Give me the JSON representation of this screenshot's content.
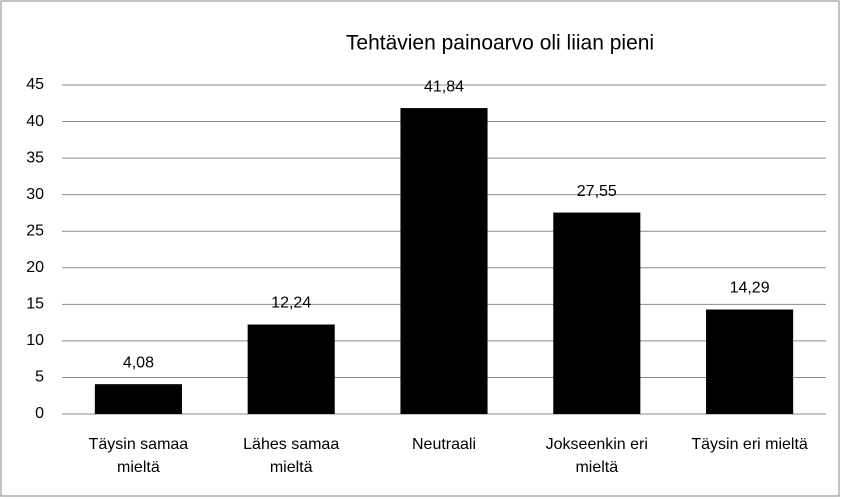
{
  "chart_data": {
    "type": "bar",
    "title": "Tehtävien painoarvo oli liian pieni",
    "categories": [
      "Täysin samaa mieltä",
      "Lähes samaa mieltä",
      "Neutraali",
      "Jokseenkin eri mieltä",
      "Täysin eri mieltä"
    ],
    "values": [
      4.08,
      12.24,
      41.84,
      27.55,
      14.29
    ],
    "value_labels": [
      "4,08",
      "12,24",
      "41,84",
      "27,55",
      "14,29"
    ],
    "color": "#000000",
    "ylim": [
      0,
      45
    ],
    "yticks": [
      0,
      5,
      10,
      15,
      20,
      25,
      30,
      35,
      40,
      45
    ],
    "grid": true
  }
}
